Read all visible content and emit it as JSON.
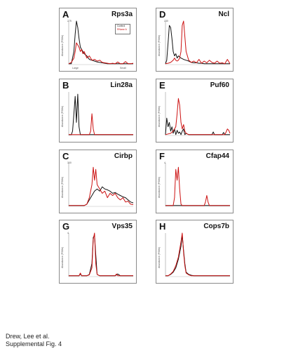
{
  "footer": {
    "line1": "Drew, Lee et al.",
    "line2": "Supplemental Fig. 4"
  },
  "colors": {
    "control": "#111111",
    "treated": "#cc1111"
  },
  "shared": {
    "ylabel": "Abundance (PSMs)"
  },
  "chart_data": [
    {
      "type": "line",
      "letter": "A",
      "title": "Rps3a",
      "ymax_label": "275",
      "xlabel_left": "Large",
      "xlabel_right": "Small",
      "legend": [
        "Control",
        "RNase A"
      ],
      "series": [
        {
          "name": "Control",
          "x": [
            0,
            2,
            4,
            5,
            6,
            7,
            8,
            9,
            10,
            11,
            12,
            14,
            16,
            18,
            20,
            22,
            24,
            26,
            28,
            30,
            32,
            34,
            36,
            38,
            40,
            42,
            44,
            46,
            48,
            50
          ],
          "values": [
            0.02,
            0.02,
            0.3,
            0.7,
            1.0,
            0.85,
            0.6,
            0.4,
            0.35,
            0.3,
            0.25,
            0.2,
            0.12,
            0.1,
            0.08,
            0.06,
            0.05,
            0.04,
            0.03,
            0.02,
            0.02,
            0.02,
            0.02,
            0.02,
            0.02,
            0.02,
            0.02,
            0.02,
            0.02,
            0.02
          ]
        },
        {
          "name": "RNase A",
          "x": [
            0,
            2,
            4,
            5,
            6,
            7,
            8,
            9,
            10,
            11,
            12,
            14,
            16,
            18,
            20,
            22,
            24,
            26,
            28,
            30,
            32,
            34,
            36,
            38,
            40,
            42,
            44,
            46,
            48,
            50
          ],
          "values": [
            0.02,
            0.05,
            0.15,
            0.3,
            0.5,
            0.45,
            0.4,
            0.3,
            0.35,
            0.25,
            0.3,
            0.15,
            0.2,
            0.1,
            0.12,
            0.08,
            0.1,
            0.05,
            0.04,
            0.03,
            0.02,
            0.03,
            0.02,
            0.06,
            0.02,
            0.02,
            0.07,
            0.02,
            0.02,
            0.03
          ]
        }
      ]
    },
    {
      "type": "line",
      "letter": "D",
      "title": "Ncl",
      "ymax_label": "230",
      "series": [
        {
          "name": "Control",
          "x": [
            0,
            1,
            2,
            3,
            4,
            5,
            6,
            7,
            8,
            9,
            10,
            12,
            14,
            16,
            18,
            20,
            22,
            24,
            26,
            28,
            30,
            32,
            34,
            36,
            38,
            40,
            42,
            44,
            46,
            48,
            50
          ],
          "values": [
            0.02,
            0.1,
            0.5,
            0.9,
            0.85,
            0.6,
            0.3,
            0.2,
            0.25,
            0.15,
            0.2,
            0.15,
            0.12,
            0.1,
            0.08,
            0.05,
            0.04,
            0.04,
            0.03,
            0.03,
            0.02,
            0.02,
            0.02,
            0.02,
            0.02,
            0.02,
            0.02,
            0.02,
            0.02,
            0.02,
            0.02
          ]
        },
        {
          "name": "RNase A",
          "x": [
            0,
            2,
            4,
            6,
            7,
            8,
            9,
            10,
            11,
            12,
            13,
            14,
            16,
            18,
            20,
            22,
            24,
            26,
            28,
            30,
            32,
            34,
            36,
            38,
            40,
            42,
            44,
            46,
            48,
            50
          ],
          "values": [
            0.02,
            0.03,
            0.05,
            0.1,
            0.15,
            0.1,
            0.08,
            0.1,
            0.15,
            0.3,
            0.9,
            1.0,
            0.3,
            0.1,
            0.05,
            0.08,
            0.04,
            0.12,
            0.03,
            0.08,
            0.04,
            0.1,
            0.05,
            0.03,
            0.08,
            0.03,
            0.04,
            0.02,
            0.12,
            0.02
          ]
        }
      ]
    },
    {
      "type": "line",
      "letter": "B",
      "title": "Lin28a",
      "ymax_label": "",
      "series": [
        {
          "name": "Control",
          "x": [
            0,
            2,
            3,
            4,
            5,
            6,
            7,
            8,
            9,
            10,
            11,
            12,
            14,
            16,
            20,
            30,
            40,
            50
          ],
          "values": [
            0.02,
            0.02,
            0.1,
            0.5,
            0.9,
            0.3,
            0.95,
            0.2,
            0.02,
            0.02,
            0.02,
            0.02,
            0.02,
            0.02,
            0.02,
            0.02,
            0.02,
            0.02
          ]
        },
        {
          "name": "RNase A",
          "x": [
            0,
            10,
            14,
            16,
            17,
            18,
            19,
            20,
            22,
            30,
            40,
            50
          ],
          "values": [
            0.02,
            0.02,
            0.02,
            0.02,
            0.1,
            0.5,
            0.15,
            0.02,
            0.02,
            0.02,
            0.02,
            0.02
          ]
        }
      ]
    },
    {
      "type": "line",
      "letter": "E",
      "title": "Puf60",
      "ymax_label": "",
      "series": [
        {
          "name": "Control",
          "x": [
            0,
            1,
            2,
            3,
            4,
            5,
            6,
            7,
            8,
            9,
            10,
            11,
            12,
            13,
            14,
            15,
            16,
            18,
            20,
            30,
            36,
            37,
            38,
            40,
            44,
            45,
            46,
            50
          ],
          "values": [
            0.02,
            0.4,
            0.2,
            0.3,
            0.1,
            0.2,
            0.05,
            0.15,
            0.02,
            0.12,
            0.05,
            0.08,
            0.02,
            0.1,
            0.15,
            0.02,
            0.05,
            0.02,
            0.02,
            0.02,
            0.02,
            0.08,
            0.02,
            0.02,
            0.02,
            0.07,
            0.02,
            0.02
          ]
        },
        {
          "name": "RNase A",
          "x": [
            0,
            4,
            6,
            8,
            9,
            10,
            11,
            12,
            13,
            14,
            15,
            16,
            18,
            20,
            24,
            30,
            40,
            46,
            47,
            48,
            49,
            50
          ],
          "values": [
            0.02,
            0.05,
            0.1,
            0.2,
            0.5,
            0.85,
            0.7,
            0.3,
            0.15,
            0.25,
            0.1,
            0.05,
            0.02,
            0.02,
            0.02,
            0.02,
            0.02,
            0.02,
            0.08,
            0.15,
            0.12,
            0.05
          ]
        }
      ]
    },
    {
      "type": "line",
      "letter": "C",
      "title": "Cirbp",
      "ymax_label": "300",
      "series": [
        {
          "name": "Control",
          "x": [
            0,
            8,
            12,
            14,
            16,
            18,
            20,
            22,
            24,
            26,
            28,
            30,
            32,
            34,
            36,
            38,
            40,
            42,
            44,
            46,
            48,
            50
          ],
          "values": [
            0.02,
            0.02,
            0.02,
            0.05,
            0.15,
            0.25,
            0.35,
            0.4,
            0.35,
            0.45,
            0.4,
            0.38,
            0.35,
            0.3,
            0.32,
            0.28,
            0.25,
            0.22,
            0.2,
            0.15,
            0.1,
            0.08
          ]
        },
        {
          "name": "RNase A",
          "x": [
            0,
            8,
            12,
            14,
            16,
            18,
            19,
            20,
            21,
            22,
            24,
            26,
            28,
            30,
            32,
            34,
            36,
            38,
            40,
            42,
            44,
            46,
            48,
            50
          ],
          "values": [
            0.02,
            0.02,
            0.02,
            0.05,
            0.2,
            0.5,
            0.9,
            0.6,
            0.85,
            0.5,
            0.4,
            0.3,
            0.35,
            0.2,
            0.3,
            0.25,
            0.3,
            0.2,
            0.15,
            0.2,
            0.1,
            0.12,
            0.05,
            0.04
          ]
        }
      ]
    },
    {
      "type": "line",
      "letter": "F",
      "title": "Cfap44",
      "ymax_label": "4",
      "series": [
        {
          "name": "Control",
          "x": [
            0,
            50
          ],
          "values": [
            0.02,
            0.02
          ]
        },
        {
          "name": "RNase A",
          "x": [
            0,
            6,
            7,
            8,
            9,
            10,
            11,
            12,
            13,
            14,
            30,
            31,
            32,
            33,
            34,
            50
          ],
          "values": [
            0.02,
            0.02,
            0.2,
            0.85,
            0.6,
            0.9,
            0.4,
            0.05,
            0.02,
            0.02,
            0.02,
            0.1,
            0.25,
            0.1,
            0.02,
            0.02
          ]
        }
      ]
    },
    {
      "type": "line",
      "letter": "G",
      "title": "Vps35",
      "ymax_label": "4",
      "series": [
        {
          "name": "Control",
          "x": [
            0,
            8,
            9,
            10,
            14,
            16,
            18,
            19,
            20,
            21,
            22,
            24,
            26,
            30,
            36,
            38,
            40,
            50
          ],
          "values": [
            0.02,
            0.02,
            0.06,
            0.02,
            0.02,
            0.05,
            0.3,
            0.9,
            0.95,
            0.5,
            0.05,
            0.02,
            0.02,
            0.02,
            0.02,
            0.06,
            0.02,
            0.02
          ]
        },
        {
          "name": "RNase A",
          "x": [
            0,
            8,
            9,
            10,
            14,
            16,
            18,
            19,
            20,
            21,
            22,
            24,
            26,
            30,
            36,
            37,
            38,
            40,
            50
          ],
          "values": [
            0.02,
            0.02,
            0.08,
            0.02,
            0.02,
            0.04,
            0.2,
            0.85,
            1.0,
            0.3,
            0.05,
            0.02,
            0.02,
            0.02,
            0.02,
            0.06,
            0.02,
            0.02,
            0.02
          ]
        }
      ]
    },
    {
      "type": "line",
      "letter": "H",
      "title": "Cops7b",
      "ymax_label": "",
      "series": [
        {
          "name": "Control",
          "x": [
            0,
            2,
            4,
            6,
            8,
            10,
            12,
            13,
            14,
            15,
            16,
            18,
            20,
            22,
            24,
            30,
            40,
            50
          ],
          "values": [
            0.02,
            0.02,
            0.05,
            0.1,
            0.2,
            0.4,
            0.7,
            0.95,
            0.6,
            0.3,
            0.1,
            0.05,
            0.03,
            0.02,
            0.02,
            0.02,
            0.02,
            0.02
          ]
        },
        {
          "name": "RNase A",
          "x": [
            0,
            2,
            4,
            6,
            8,
            10,
            12,
            13,
            14,
            15,
            16,
            18,
            20,
            22,
            24,
            30,
            40,
            50
          ],
          "values": [
            0.02,
            0.02,
            0.06,
            0.12,
            0.25,
            0.45,
            0.8,
            1.0,
            0.55,
            0.25,
            0.08,
            0.04,
            0.02,
            0.02,
            0.02,
            0.02,
            0.02,
            0.02
          ]
        }
      ]
    }
  ]
}
